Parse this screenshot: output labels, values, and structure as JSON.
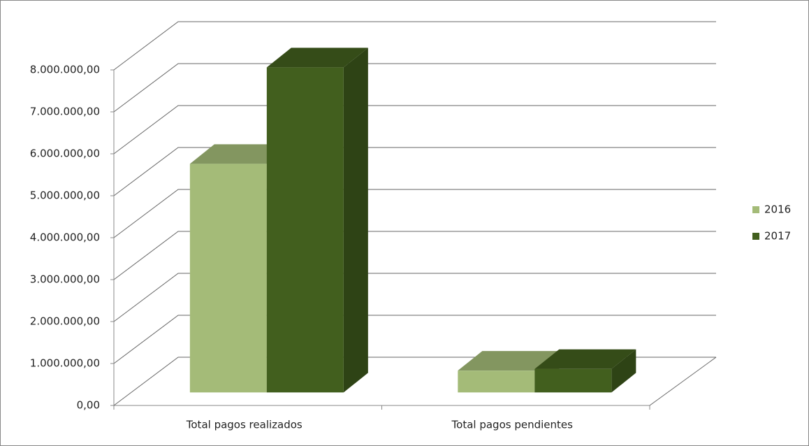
{
  "chart_data": {
    "type": "bar3d",
    "categories": [
      "Total pagos realizados",
      "Total pagos pendientes"
    ],
    "series": [
      {
        "name": "2016",
        "color": "#a4bb78",
        "values": [
          5450000,
          520000
        ]
      },
      {
        "name": "2017",
        "color": "#425f1e",
        "values": [
          7750000,
          560000
        ]
      }
    ],
    "ylim": [
      0,
      8000000
    ],
    "yticks": [
      {
        "value": 0,
        "label": "0,00"
      },
      {
        "value": 1000000,
        "label": "1.000.000,00"
      },
      {
        "value": 2000000,
        "label": "2.000.000,00"
      },
      {
        "value": 3000000,
        "label": "3.000.000,00"
      },
      {
        "value": 4000000,
        "label": "4.000.000,00"
      },
      {
        "value": 5000000,
        "label": "5.000.000,00"
      },
      {
        "value": 6000000,
        "label": "6.000.000,00"
      },
      {
        "value": 7000000,
        "label": "7.000.000,00"
      },
      {
        "value": 8000000,
        "label": "8.000.000,00"
      }
    ],
    "grid": true,
    "legend": "right"
  }
}
